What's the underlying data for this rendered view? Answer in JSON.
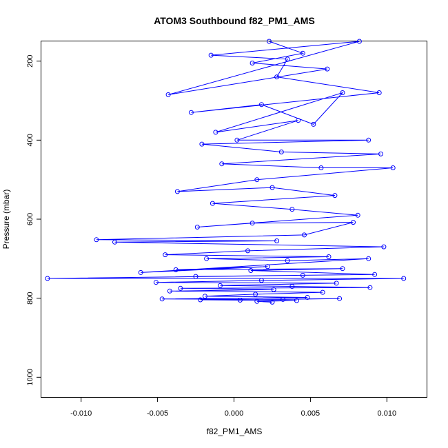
{
  "chart_data": {
    "type": "scatter",
    "title": "ATOM3 Southbound f82_PM1_AMS",
    "xlabel": "f82_PM1_AMS",
    "ylabel": "Pressure (mbar)",
    "xlim": [
      -0.0126,
      0.0126
    ],
    "ylim": [
      1050,
      150
    ],
    "y_reversed": true,
    "x_ticks": [
      -0.01,
      -0.005,
      0.0,
      0.005,
      0.01
    ],
    "x_tick_labels": [
      "-0.010",
      "-0.005",
      "0.000",
      "0.005",
      "0.010"
    ],
    "y_ticks": [
      200,
      400,
      600,
      800,
      1000
    ],
    "y_tick_labels": [
      "200",
      "400",
      "600",
      "800",
      "1000"
    ],
    "grid": false,
    "series_style": "points connected by lines",
    "color": "#0000ff",
    "points": [
      [
        0.0023,
        150
      ],
      [
        0.0045,
        180
      ],
      [
        0.0012,
        205
      ],
      [
        0.0061,
        220
      ],
      [
        -0.0043,
        285
      ],
      [
        0.0082,
        150
      ],
      [
        -0.0015,
        185
      ],
      [
        0.0035,
        195
      ],
      [
        0.0028,
        240
      ],
      [
        0.0095,
        280
      ],
      [
        -0.0028,
        330
      ],
      [
        0.0018,
        310
      ],
      [
        0.0052,
        360
      ],
      [
        0.0071,
        280
      ],
      [
        -0.0012,
        380
      ],
      [
        0.0042,
        350
      ],
      [
        0.0002,
        400
      ],
      [
        0.0088,
        400
      ],
      [
        -0.0021,
        410
      ],
      [
        0.0031,
        430
      ],
      [
        0.0096,
        435
      ],
      [
        -0.0008,
        460
      ],
      [
        0.0057,
        470
      ],
      [
        0.0104,
        470
      ],
      [
        0.0015,
        500
      ],
      [
        -0.0037,
        530
      ],
      [
        0.0025,
        520
      ],
      [
        0.0066,
        540
      ],
      [
        -0.0014,
        560
      ],
      [
        0.0038,
        575
      ],
      [
        0.0081,
        590
      ],
      [
        -0.0024,
        620
      ],
      [
        0.0012,
        610
      ],
      [
        0.0078,
        608
      ],
      [
        0.0046,
        640
      ],
      [
        -0.009,
        652
      ],
      [
        0.0028,
        655
      ],
      [
        -0.0078,
        658
      ],
      [
        0.0098,
        670
      ],
      [
        0.0009,
        680
      ],
      [
        -0.0045,
        690
      ],
      [
        0.0062,
        695
      ],
      [
        -0.0018,
        700
      ],
      [
        0.0035,
        705
      ],
      [
        0.0088,
        700
      ],
      [
        -0.0061,
        735
      ],
      [
        0.0022,
        720
      ],
      [
        -0.0038,
        728
      ],
      [
        0.0071,
        725
      ],
      [
        0.0011,
        730
      ],
      [
        0.0092,
        740
      ],
      [
        -0.0025,
        745
      ],
      [
        0.0045,
        742
      ],
      [
        -0.0122,
        750
      ],
      [
        0.0111,
        750
      ],
      [
        0.0018,
        755
      ],
      [
        -0.0051,
        760
      ],
      [
        0.0067,
        762
      ],
      [
        -0.0009,
        768
      ],
      [
        0.0038,
        770
      ],
      [
        0.0089,
        773
      ],
      [
        -0.0035,
        775
      ],
      [
        0.0026,
        778
      ],
      [
        -0.0042,
        782
      ],
      [
        0.0058,
        785
      ],
      [
        0.0014,
        790
      ],
      [
        -0.0019,
        795
      ],
      [
        0.0048,
        798
      ],
      [
        -0.0047,
        802
      ],
      [
        0.0032,
        803
      ],
      [
        0.0069,
        801
      ],
      [
        -0.0022,
        804
      ],
      [
        0.0004,
        805
      ],
      [
        0.0041,
        806
      ],
      [
        0.0015,
        808
      ],
      [
        0.0025,
        810
      ]
    ]
  }
}
